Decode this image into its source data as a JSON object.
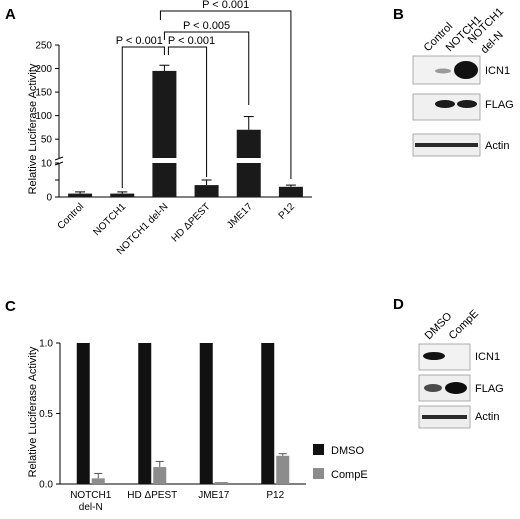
{
  "panels": {
    "a": "A",
    "b": "B",
    "c": "C",
    "d": "D"
  },
  "chart_data": [
    {
      "type": "bar",
      "ylabel": "Relative Luciferase Activity",
      "axis_break": {
        "lower": [
          0,
          10
        ],
        "upper": [
          10,
          250
        ]
      },
      "yticks_lower": [
        "0",
        "5",
        "10"
      ],
      "yticks_upper": [
        "50",
        "100",
        "150",
        "200",
        "250"
      ],
      "categories": [
        "Control",
        "NOTCH1",
        "NOTCH1 del-N",
        "HD ΔPEST",
        "JME17",
        "P12"
      ],
      "values": [
        1,
        1,
        195,
        3.5,
        70,
        3
      ],
      "errors": [
        0.5,
        0.5,
        12,
        1.5,
        28,
        0.5
      ],
      "comparisons": [
        {
          "from": 1,
          "to": 2,
          "label": "P < 0.001"
        },
        {
          "from": 2,
          "to": 3,
          "label": "P < 0.001"
        },
        {
          "from": 2,
          "to": 4,
          "label": "P < 0.005"
        },
        {
          "from": 2,
          "to": 5,
          "label": "P < 0.001"
        }
      ],
      "bar_color": "#1a1a1a"
    },
    {
      "type": "bar",
      "ylabel": "Relative Luciferase Activity",
      "ylim": [
        0,
        1.0
      ],
      "yticks": [
        "0.0",
        "0.5",
        "1.0"
      ],
      "categories": [
        "NOTCH1 del-N",
        "HD ΔPEST",
        "JME17",
        "P12"
      ],
      "series": [
        {
          "name": "DMSO",
          "color": "#111111",
          "values": [
            1.0,
            1.0,
            1.0,
            1.0
          ],
          "errors": [
            0,
            0,
            0,
            0
          ]
        },
        {
          "name": "CompE",
          "color": "#8c8c8c",
          "values": [
            0.04,
            0.12,
            0.0,
            0.2
          ],
          "errors": [
            0.035,
            0.04,
            0,
            0.015
          ]
        }
      ],
      "legend_position": "right"
    }
  ],
  "blot_b": {
    "lanes": [
      "Control",
      "NOTCH1",
      "NOTCH1 del-N"
    ],
    "rows": [
      "ICN1",
      "FLAG",
      "Actin"
    ]
  },
  "blot_d": {
    "lanes": [
      "DMSO",
      "CompE"
    ],
    "rows": [
      "ICN1",
      "FLAG",
      "Actin"
    ]
  }
}
